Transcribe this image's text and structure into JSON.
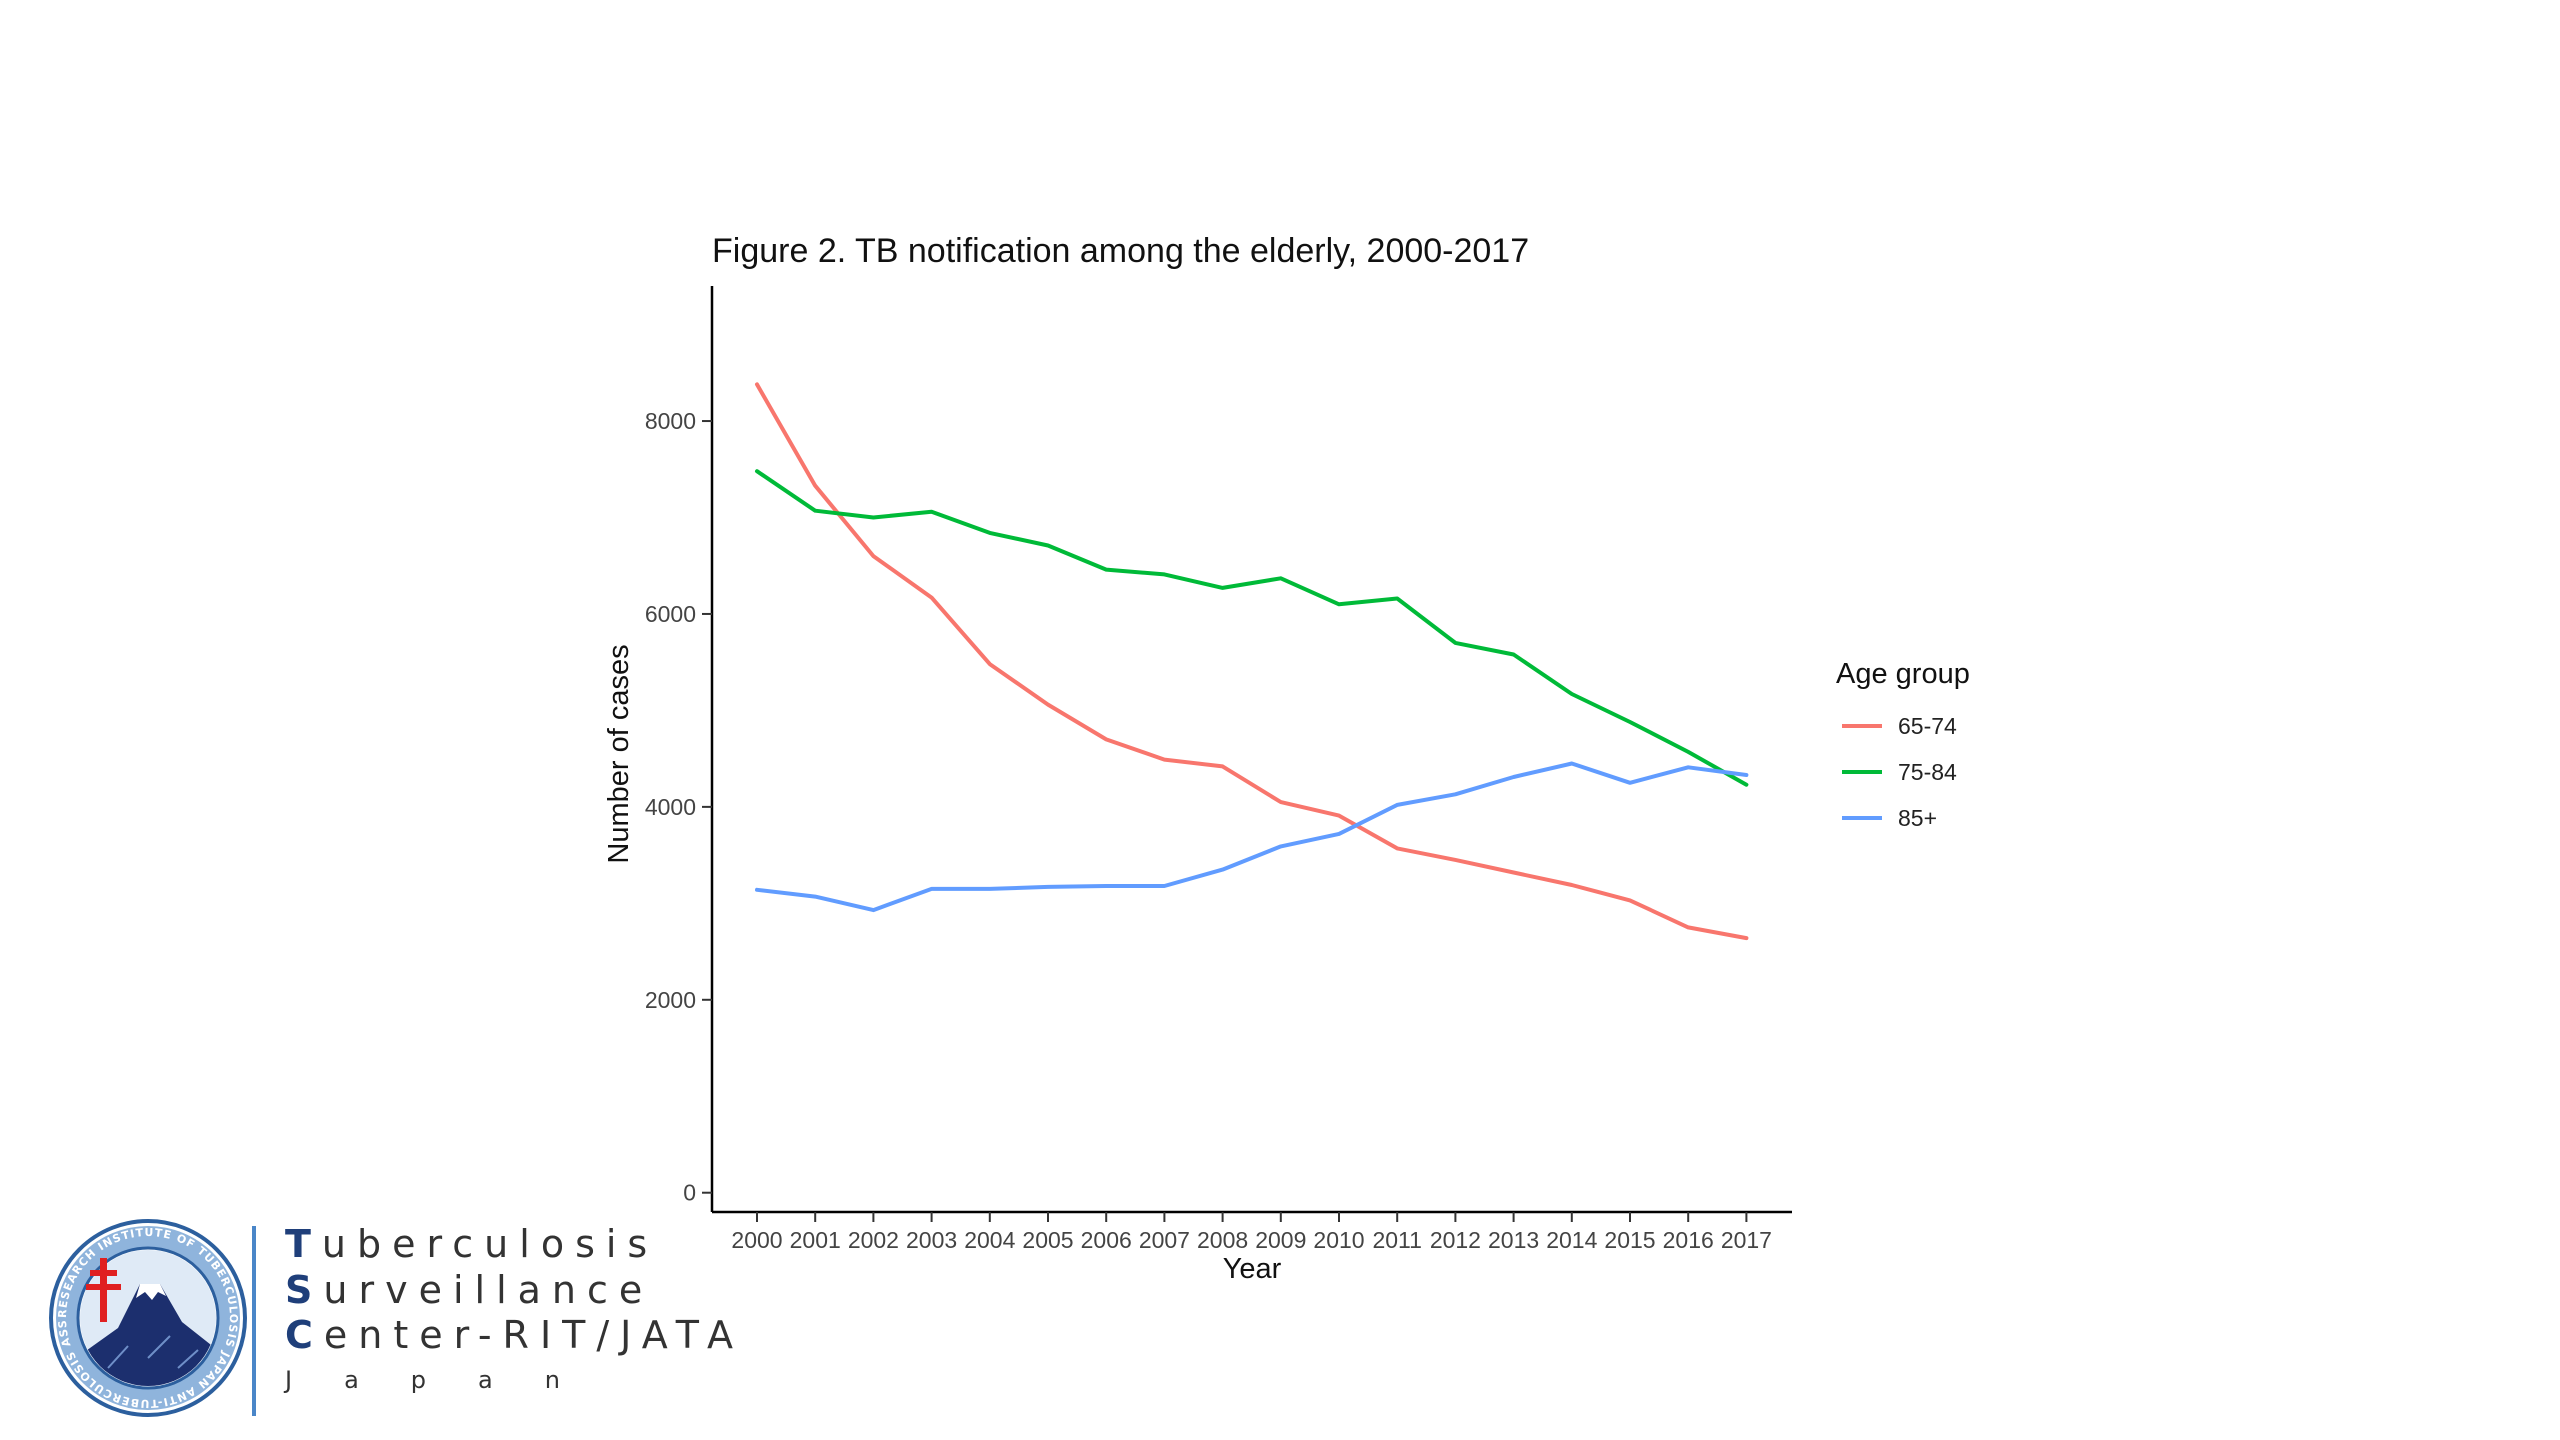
{
  "chart_data": {
    "type": "line",
    "title": "Figure 2. TB notification among the elderly, 2000-2017",
    "xlabel": "Year",
    "ylabel": "Number of cases",
    "x": [
      2000,
      2001,
      2002,
      2003,
      2004,
      2005,
      2006,
      2007,
      2008,
      2009,
      2010,
      2011,
      2012,
      2013,
      2014,
      2015,
      2016,
      2017
    ],
    "yticks": [
      0,
      2000,
      4000,
      6000,
      8000
    ],
    "ylim": [
      -200,
      9400
    ],
    "grid": false,
    "legend": {
      "title": "Age group",
      "position": "right"
    },
    "series": [
      {
        "name": "65-74",
        "color": "#f8766d",
        "values": [
          8380,
          7330,
          6600,
          6170,
          5480,
          5060,
          4700,
          4490,
          4420,
          4050,
          3910,
          3570,
          3450,
          3320,
          3190,
          3030,
          2750,
          2640
        ]
      },
      {
        "name": "75-84",
        "color": "#00ba38",
        "values": [
          7480,
          7070,
          7000,
          7060,
          6840,
          6710,
          6460,
          6410,
          6270,
          6370,
          6100,
          6160,
          5700,
          5580,
          5170,
          4880,
          4570,
          4230
        ]
      },
      {
        "name": "85+",
        "color": "#619cff",
        "values": [
          3140,
          3070,
          2930,
          3150,
          3150,
          3170,
          3180,
          3180,
          3350,
          3590,
          3720,
          4020,
          4130,
          4310,
          4450,
          4250,
          4410,
          4330
        ]
      }
    ]
  },
  "organization": {
    "line1_initial": "T",
    "line1_rest": "uberculosis",
    "line2_initial": "S",
    "line2_rest": "urveillance",
    "line3_initial": "C",
    "line3_rest": "enter-RIT/JATA",
    "line4": "Japan",
    "seal_text": "RESEARCH INSTITUTE OF TUBERCULOSIS JAPAN ANTI-TUBERCULOSIS ASSOCIATION",
    "seal_colors": {
      "ring": "#2c5f9e",
      "mountain": "#1c2f6e",
      "cross": "#e02020"
    }
  }
}
